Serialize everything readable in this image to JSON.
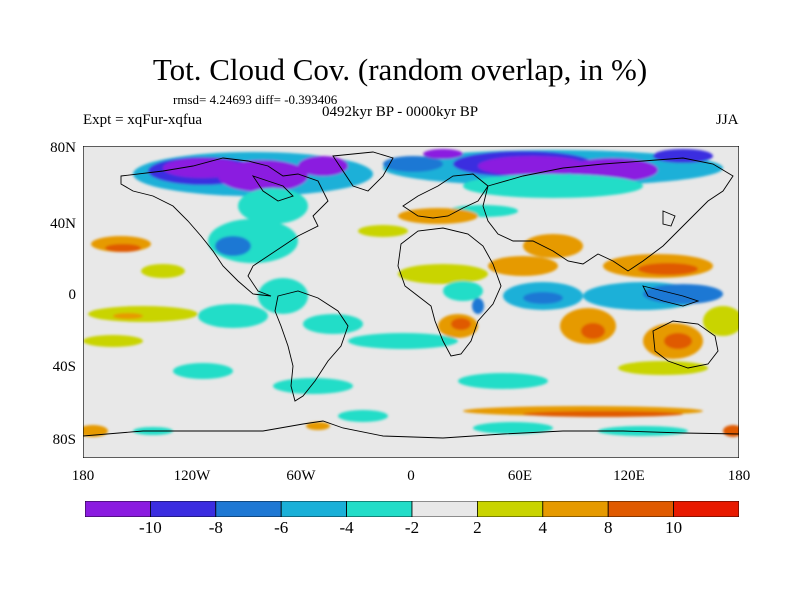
{
  "title": "Tot. Cloud Cov. (random overlap, in %)",
  "stats": "rmsd= 4.24693 diff= -0.393406",
  "experiment": "Expt = xqFur-xqfua",
  "period": "0492kyr BP - 0000kyr BP",
  "season": "JJA",
  "axes": {
    "lat_ticks": [
      "80N",
      "40N",
      "0",
      "40S",
      "80S"
    ],
    "lon_ticks": [
      "180",
      "120W",
      "60W",
      "0",
      "60E",
      "120E",
      "180"
    ]
  },
  "colorbar": {
    "labels": [
      "-10",
      "-8",
      "-6",
      "-4",
      "-2",
      "2",
      "4",
      "8",
      "10"
    ],
    "colors": [
      "#8b1be0",
      "#3b2de0",
      "#1f78d4",
      "#1ab0d8",
      "#22ddc8",
      "#e8e8e8",
      "#c9d400",
      "#e69a00",
      "#e05a00",
      "#e81a00"
    ]
  }
}
